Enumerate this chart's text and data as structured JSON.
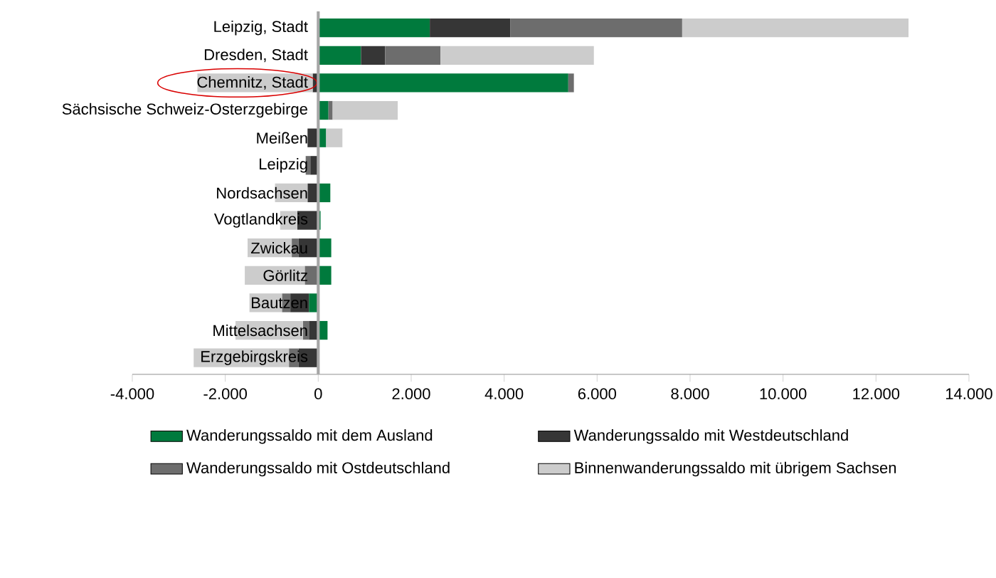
{
  "chart_data": {
    "type": "bar",
    "orientation": "horizontal",
    "stacked": true,
    "categories": [
      "Leipzig, Stadt",
      "Dresden, Stadt",
      "Chemnitz, Stadt",
      "Sächsische Schweiz-Osterzgebirge",
      "Meißen",
      "Leipzig",
      "Nordsachsen",
      "Vogtlandkreis",
      "Zwickau",
      "Görlitz",
      "Bautzen",
      "Mittelsachsen",
      "Erzgebirgskreis"
    ],
    "series": [
      {
        "name": "Wanderungssaldo mit dem Ausland",
        "color": "#007a3d",
        "values": [
          2400,
          920,
          5380,
          220,
          170,
          0,
          260,
          50,
          280,
          280,
          -200,
          200,
          0
        ]
      },
      {
        "name": "Wanderungssaldo mit Westdeutschland",
        "color": "#363636",
        "values": [
          1730,
          520,
          -120,
          0,
          -230,
          -170,
          -230,
          -450,
          -420,
          0,
          -400,
          -200,
          -420
        ]
      },
      {
        "name": "Wanderungssaldo mit Ostdeutschland",
        "color": "#6d6d6d",
        "values": [
          3700,
          1190,
          120,
          90,
          0,
          -100,
          0,
          0,
          -150,
          -290,
          -180,
          -130,
          -210
        ]
      },
      {
        "name": "Binnenwanderungssaldo mit übrigem Sachsen",
        "color": "#cccccc",
        "values": [
          4870,
          3300,
          -2480,
          1400,
          350,
          0,
          -700,
          -370,
          -950,
          -1290,
          -700,
          -1450,
          -2050
        ]
      }
    ],
    "xlim": [
      -4000,
      14000
    ],
    "xticks": [
      {
        "value": -4000,
        "label": "-4.000"
      },
      {
        "value": -2000,
        "label": "-2.000"
      },
      0,
      {
        "value": 2000,
        "label": "2.000"
      },
      {
        "value": 4000,
        "label": "4.000"
      },
      {
        "value": 6000,
        "label": "6.000"
      },
      {
        "value": 8000,
        "label": "8.000"
      },
      {
        "value": 10000,
        "label": "10.000"
      },
      {
        "value": 12000,
        "label": "12.000"
      },
      {
        "value": 14000,
        "label": "14.000"
      }
    ],
    "grid": false,
    "legend": "bottom"
  }
}
